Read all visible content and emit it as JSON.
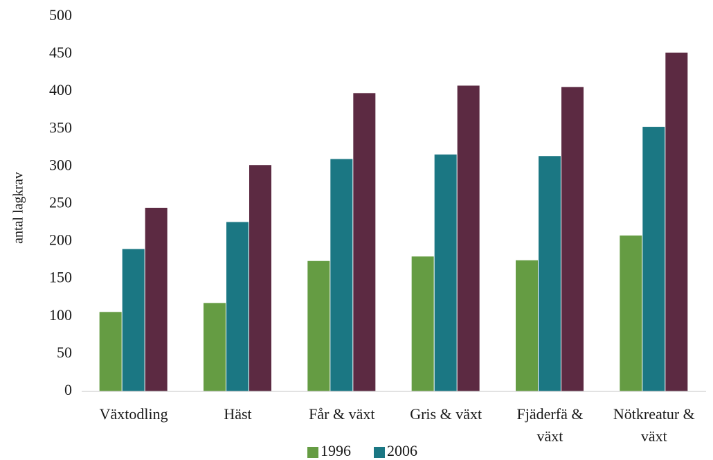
{
  "chart_data": {
    "type": "bar",
    "title": "",
    "xlabel": "",
    "ylabel": "antal lagkrav",
    "ylim": [
      0,
      500
    ],
    "yticks": [
      0,
      50,
      100,
      150,
      200,
      250,
      300,
      350,
      400,
      450,
      500
    ],
    "grid": false,
    "legend_position": "bottom",
    "categories": [
      [
        "Växtodling"
      ],
      [
        "Häst"
      ],
      [
        "Får & växt"
      ],
      [
        "Gris & växt"
      ],
      [
        "Fjäderfä &",
        "växt"
      ],
      [
        "Nötkreatur &",
        "växt"
      ]
    ],
    "series": [
      {
        "name": "1996",
        "color": "#659c43",
        "values": [
          106,
          118,
          174,
          180,
          175,
          208
        ]
      },
      {
        "name": "2006",
        "color": "#1b7783",
        "values": [
          190,
          226,
          310,
          316,
          314,
          353
        ]
      },
      {
        "name": "",
        "color": "#5c2a42",
        "values": [
          245,
          302,
          398,
          408,
          406,
          452
        ]
      }
    ]
  }
}
